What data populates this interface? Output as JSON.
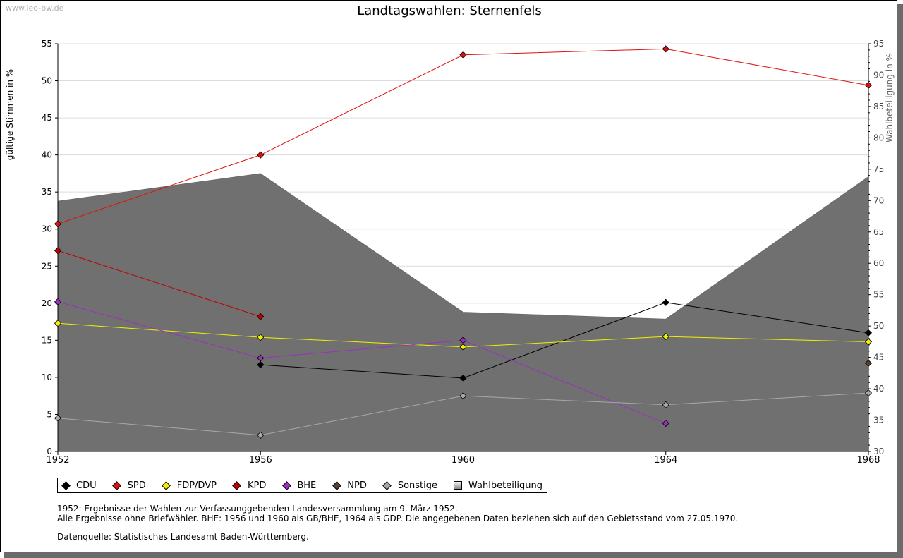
{
  "watermark": "www.leo-bw.de",
  "footnotes": {
    "line1": "1952: Ergebnisse der Wahlen zur Verfassunggebenden Landesversammlung am 9. März 1952.",
    "line2": "Alle Ergebnisse ohne Briefwähler. BHE: 1956 und 1960 als GB/BHE, 1964 als GDP. Die angegebenen Daten beziehen sich auf den Gebietsstand vom 27.05.1970.",
    "source": "Datenquelle: Statistisches Landesamt Baden-Württemberg."
  },
  "chart_data": {
    "type": "line",
    "title": "Landtagswahlen: Sternenfels",
    "ylabel": "gültige Stimmen in %",
    "y2label": "Wahlbeteiligung in %",
    "x": [
      1952,
      1956,
      1960,
      1964,
      1968
    ],
    "x_ticks": [
      "1952",
      "1956",
      "1960",
      "1964",
      "1968"
    ],
    "ylim": [
      0,
      55
    ],
    "y_ticks": [
      "0",
      "5",
      "10",
      "15",
      "20",
      "25",
      "30",
      "35",
      "40",
      "45",
      "50",
      "55"
    ],
    "y2lim": [
      30,
      95
    ],
    "y2_ticks": [
      "30",
      "35",
      "40",
      "45",
      "50",
      "55",
      "60",
      "65",
      "70",
      "75",
      "80",
      "85",
      "90",
      "95"
    ],
    "area": {
      "name": "Wahlbeteiligung",
      "axis": "right",
      "values": [
        69.9,
        74.3,
        52.2,
        51.1,
        73.8
      ]
    },
    "series": [
      {
        "name": "CDU",
        "color": "#000000",
        "values": [
          null,
          11.7,
          9.9,
          20.1,
          16.0
        ]
      },
      {
        "name": "SPD",
        "color": "#e01010",
        "values": [
          30.7,
          40.0,
          53.5,
          54.3,
          49.4
        ]
      },
      {
        "name": "FDP/DVP",
        "color": "#f0f000",
        "values": [
          17.3,
          15.4,
          14.1,
          15.5,
          14.8
        ]
      },
      {
        "name": "KPD",
        "color": "#c00000",
        "values": [
          27.1,
          18.2,
          null,
          null,
          null
        ]
      },
      {
        "name": "BHE",
        "color": "#9a30c0",
        "values": [
          20.2,
          12.6,
          15.0,
          3.8,
          null
        ]
      },
      {
        "name": "NPD",
        "color": "#5a4030",
        "values": [
          null,
          null,
          null,
          null,
          11.9
        ]
      },
      {
        "name": "Sonstige",
        "color": "#a8a8a8",
        "values": [
          4.5,
          2.2,
          7.5,
          6.3,
          7.9
        ]
      }
    ],
    "legend": [
      {
        "label": "CDU",
        "color": "#000000",
        "shape": "diamond"
      },
      {
        "label": "SPD",
        "color": "#e01010",
        "shape": "diamond"
      },
      {
        "label": "FDP/DVP",
        "color": "#f0f000",
        "shape": "diamond"
      },
      {
        "label": "KPD",
        "color": "#c00000",
        "shape": "diamond"
      },
      {
        "label": "BHE",
        "color": "#9a30c0",
        "shape": "diamond"
      },
      {
        "label": "NPD",
        "color": "#5a4030",
        "shape": "diamond"
      },
      {
        "label": "Sonstige",
        "color": "#a8a8a8",
        "shape": "diamond"
      },
      {
        "label": "Wahlbeteiligung",
        "color": "#b0b0b0",
        "shape": "square"
      }
    ]
  }
}
